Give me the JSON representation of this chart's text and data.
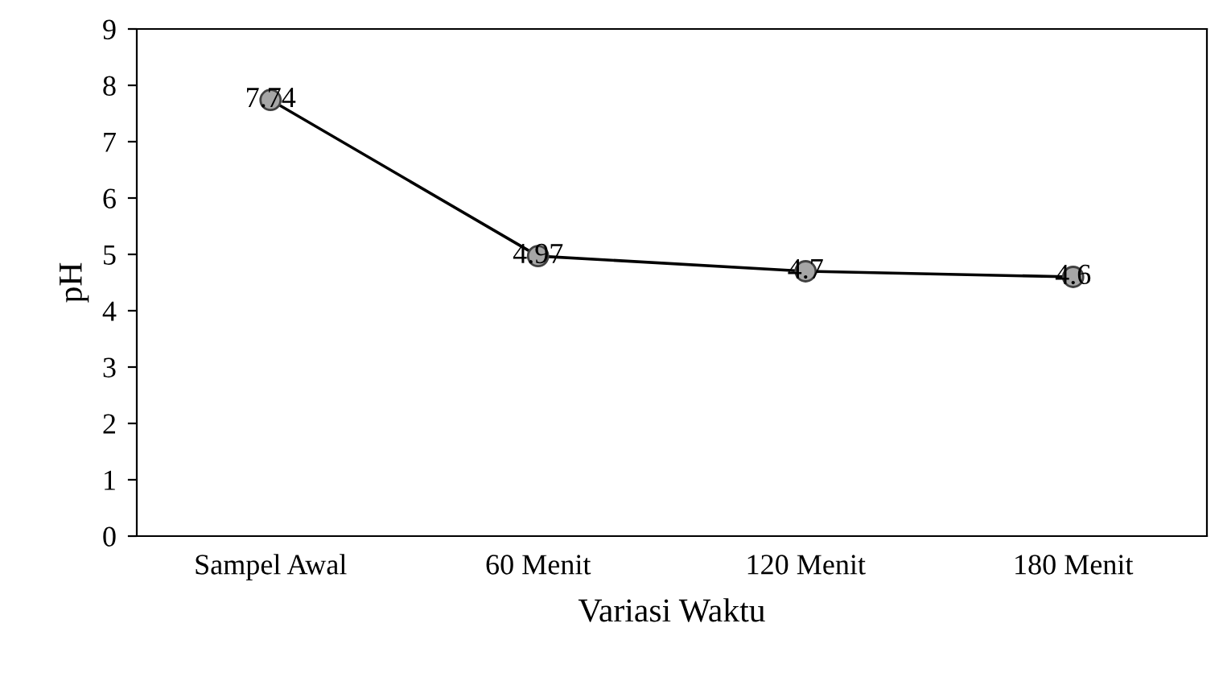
{
  "chart_data": {
    "type": "line",
    "xlabel": "Variasi Waktu",
    "ylabel": "pH",
    "categories": [
      "Sampel Awal",
      "60 Menit",
      "120 Menit",
      "180 Menit"
    ],
    "series": [
      {
        "color": "#000000",
        "values": [
          7.74,
          4.97,
          4.7,
          4.6
        ]
      }
    ],
    "ylim": [
      0,
      9
    ],
    "yticks": [
      0,
      1,
      2,
      3,
      4,
      5,
      6,
      7,
      8,
      9
    ],
    "marker": "circle",
    "line_style": "solid",
    "data_labels": true,
    "grid": false,
    "legend": false
  }
}
